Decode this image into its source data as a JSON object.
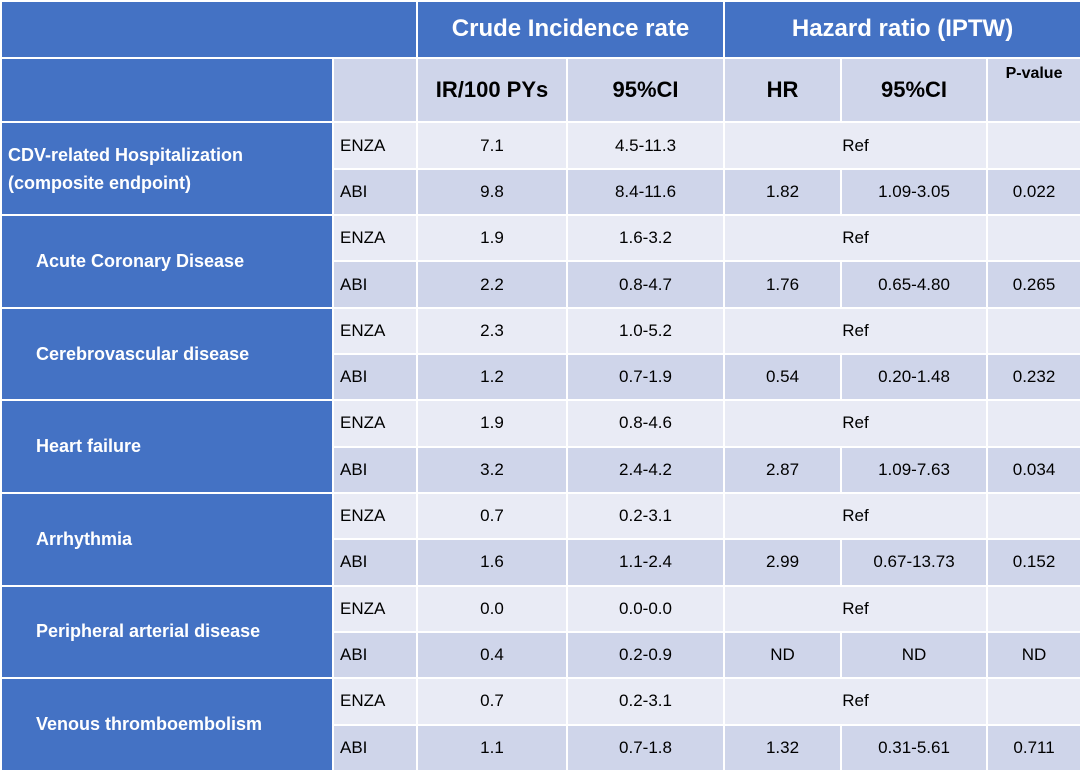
{
  "header": {
    "group_columns": [
      "Crude Incidence rate",
      "Hazard ratio (IPTW)"
    ],
    "columns": [
      "IR/100 PYs",
      "95%CI",
      "HR",
      "95%CI",
      "P-value"
    ]
  },
  "groups": [
    {
      "label": "CDV-related Hospitalization (composite endpoint)",
      "rows": [
        [
          "ENZA",
          "7.1",
          "4.5-11.3",
          "Ref"
        ],
        [
          "ABI",
          "9.8",
          "8.4-11.6",
          "1.82",
          "1.09-3.05",
          "0.022"
        ]
      ]
    },
    {
      "label": "Acute Coronary Disease",
      "rows": [
        [
          "ENZA",
          "1.9",
          "1.6-3.2",
          "Ref"
        ],
        [
          "ABI",
          "2.2",
          "0.8-4.7",
          "1.76",
          "0.65-4.80",
          "0.265"
        ]
      ]
    },
    {
      "label": "Cerebrovascular disease",
      "rows": [
        [
          "ENZA",
          "2.3",
          "1.0-5.2",
          "Ref"
        ],
        [
          "ABI",
          "1.2",
          "0.7-1.9",
          "0.54",
          "0.20-1.48",
          "0.232"
        ]
      ]
    },
    {
      "label": "Heart failure",
      "rows": [
        [
          "ENZA",
          "1.9",
          "0.8-4.6",
          "Ref"
        ],
        [
          "ABI",
          "3.2",
          "2.4-4.2",
          "2.87",
          "1.09-7.63",
          "0.034"
        ]
      ]
    },
    {
      "label": "Arrhythmia",
      "rows": [
        [
          "ENZA",
          "0.7",
          "0.2-3.1",
          "Ref"
        ],
        [
          "ABI",
          "1.6",
          "1.1-2.4",
          "2.99",
          "0.67-13.73",
          "0.152"
        ]
      ]
    },
    {
      "label": "Peripheral arterial disease",
      "rows": [
        [
          "ENZA",
          "0.0",
          "0.0-0.0",
          "Ref"
        ],
        [
          "ABI",
          "0.4",
          "0.2-0.9",
          "ND",
          "ND",
          "ND"
        ]
      ]
    },
    {
      "label": "Venous thromboembolism",
      "rows": [
        [
          "ENZA",
          "0.7",
          "0.2-3.1",
          "Ref"
        ],
        [
          "ABI",
          "1.1",
          "0.7-1.8",
          "1.32",
          "0.31-5.61",
          "0.711"
        ]
      ]
    }
  ]
}
